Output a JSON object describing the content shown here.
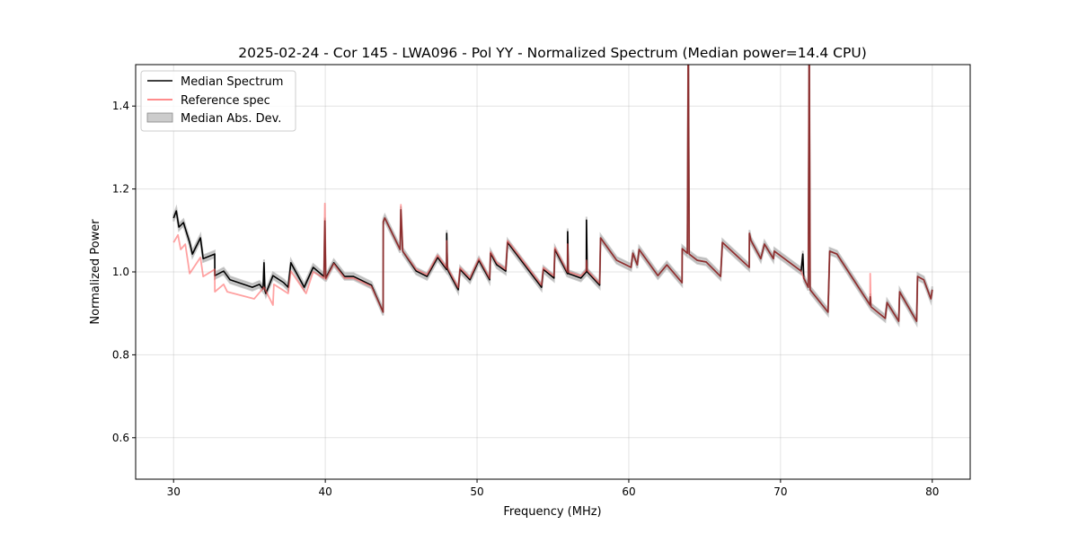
{
  "chart_data": {
    "type": "line",
    "title": "2025-02-24 - Cor 145 - LWA096 - Pol YY - Normalized Spectrum (Median power=14.4 CPU)",
    "xlabel": "Frequency (MHz)",
    "ylabel": "Normalized Power",
    "xlim": [
      27.5,
      82.5
    ],
    "ylim": [
      0.5,
      1.5
    ],
    "xticks": [
      30,
      40,
      50,
      60,
      70,
      80
    ],
    "xtick_labels": [
      "30",
      "40",
      "50",
      "60",
      "70",
      "80"
    ],
    "yticks": [
      0.6,
      0.8,
      1.0,
      1.2,
      1.4
    ],
    "ytick_labels": [
      "0.6",
      "0.8",
      "1.0",
      "1.2",
      "1.4"
    ],
    "grid": true,
    "legend_position": "top-left",
    "legend": [
      "Median Spectrum",
      "Reference spec",
      "Median Abs. Dev."
    ],
    "colors": {
      "median": "#000000",
      "reference": "#ff5555",
      "mad": "#aaaaaa"
    },
    "mad_halfwidth": 0.008,
    "series": [
      {
        "name": "Median Spectrum",
        "x": [
          30.0,
          30.18,
          30.35,
          30.65,
          31.06,
          31.24,
          31.77,
          31.95,
          32.71,
          32.72,
          33.3,
          33.72,
          35.19,
          35.66,
          35.9,
          35.96,
          36.02,
          36.08,
          36.55,
          37.26,
          37.55,
          37.73,
          38.61,
          39.2,
          39.91,
          39.97,
          40.03,
          40.56,
          41.27,
          41.86,
          43.04,
          43.81,
          43.82,
          43.92,
          44.93,
          44.98,
          45.1,
          45.99,
          46.7,
          47.4,
          47.99,
          48.0,
          48.05,
          48.76,
          48.88,
          49.53,
          50.12,
          50.83,
          50.89,
          51.3,
          51.89,
          52.01,
          54.25,
          54.37,
          55.07,
          55.13,
          55.96,
          55.97,
          56.02,
          56.84,
          57.2,
          57.21,
          57.26,
          58.08,
          58.14,
          59.2,
          60.15,
          60.27,
          60.56,
          60.68,
          61.92,
          62.51,
          63.51,
          63.52,
          63.86,
          63.92,
          63.98,
          64.51,
          65.1,
          66.05,
          66.17,
          67.94,
          67.95,
          68.05,
          68.7,
          68.94,
          69.53,
          69.59,
          71.36,
          71.47,
          71.53,
          71.83,
          71.89,
          71.95,
          73.13,
          73.24,
          73.72,
          75.9,
          75.91,
          75.96,
          76.9,
          77.02,
          77.79,
          77.85,
          78.97,
          79.03,
          79.44,
          79.91,
          80.0
        ],
        "y": [
          1.13,
          1.147,
          1.108,
          1.119,
          1.071,
          1.043,
          1.082,
          1.032,
          1.043,
          0.991,
          1.002,
          0.981,
          0.963,
          0.97,
          0.959,
          1.022,
          0.955,
          0.948,
          0.991,
          0.974,
          0.963,
          1.022,
          0.963,
          1.011,
          0.989,
          1.123,
          0.985,
          1.022,
          0.989,
          0.989,
          0.968,
          0.903,
          1.121,
          1.13,
          1.054,
          1.15,
          1.05,
          1.002,
          0.989,
          1.035,
          1.006,
          1.093,
          1.006,
          0.957,
          1.006,
          0.981,
          1.028,
          0.981,
          1.045,
          1.017,
          1.002,
          1.071,
          0.963,
          1.006,
          0.985,
          1.054,
          0.996,
          1.097,
          0.996,
          0.985,
          1.0,
          1.125,
          1.0,
          0.968,
          1.082,
          1.028,
          1.011,
          1.045,
          1.017,
          1.054,
          0.991,
          1.017,
          0.974,
          1.056,
          1.045,
          1.6,
          1.043,
          1.028,
          1.024,
          0.989,
          1.071,
          1.011,
          1.093,
          1.076,
          1.032,
          1.067,
          1.032,
          1.05,
          1.002,
          1.043,
          0.985,
          0.963,
          1.6,
          0.957,
          0.903,
          1.05,
          1.043,
          0.92,
          0.94,
          0.916,
          0.888,
          0.926,
          0.881,
          0.952,
          0.881,
          0.989,
          0.981,
          0.935,
          0.957
        ]
      },
      {
        "name": "Reference spec",
        "x": [
          30.0,
          30.29,
          30.47,
          30.77,
          31.06,
          31.77,
          31.95,
          32.71,
          32.72,
          33.3,
          33.54,
          35.31,
          35.96,
          36.55,
          36.61,
          37.55,
          37.73,
          38.73,
          39.2,
          39.91,
          39.97,
          40.03,
          40.56,
          41.27,
          41.86,
          43.04,
          43.81,
          43.82,
          43.92,
          44.93,
          44.98,
          45.1,
          45.99,
          46.7,
          47.4,
          47.99,
          48.0,
          48.05,
          48.76,
          48.88,
          49.53,
          50.12,
          50.83,
          50.89,
          51.3,
          51.89,
          52.01,
          54.25,
          54.37,
          55.07,
          55.13,
          55.96,
          55.97,
          56.02,
          56.84,
          57.2,
          57.21,
          57.26,
          58.08,
          58.14,
          59.2,
          60.15,
          60.27,
          60.56,
          60.68,
          61.92,
          62.51,
          63.51,
          63.52,
          63.86,
          63.92,
          63.98,
          64.51,
          65.1,
          66.05,
          66.17,
          67.94,
          67.95,
          68.05,
          68.7,
          68.94,
          69.53,
          69.59,
          71.36,
          71.53,
          71.83,
          71.89,
          71.95,
          73.13,
          73.24,
          73.72,
          75.9,
          75.91,
          75.96,
          76.9,
          77.02,
          77.79,
          77.85,
          78.97,
          79.03,
          79.44,
          79.91,
          80.0
        ],
        "y": [
          1.071,
          1.089,
          1.054,
          1.067,
          0.996,
          1.035,
          0.989,
          1.006,
          0.952,
          0.97,
          0.952,
          0.935,
          0.963,
          0.92,
          0.97,
          0.948,
          1.002,
          0.948,
          1.0,
          0.985,
          1.165,
          0.982,
          1.02,
          0.985,
          0.985,
          0.965,
          0.903,
          1.121,
          1.13,
          1.054,
          1.162,
          1.05,
          1.006,
          0.993,
          1.04,
          1.01,
          1.075,
          1.01,
          0.962,
          1.01,
          0.985,
          1.032,
          0.985,
          1.048,
          1.022,
          1.006,
          1.075,
          0.968,
          1.01,
          0.99,
          1.058,
          1.0,
          1.067,
          1.0,
          0.99,
          1.004,
          1.028,
          1.004,
          0.972,
          1.082,
          1.028,
          1.011,
          1.045,
          1.017,
          1.054,
          0.991,
          1.017,
          0.974,
          1.056,
          1.045,
          1.6,
          1.043,
          1.028,
          1.024,
          0.989,
          1.071,
          1.011,
          1.093,
          1.076,
          1.032,
          1.067,
          1.032,
          1.05,
          1.002,
          0.985,
          0.963,
          1.6,
          0.957,
          0.903,
          1.05,
          1.043,
          0.92,
          0.996,
          0.916,
          0.888,
          0.926,
          0.881,
          0.952,
          0.881,
          0.989,
          0.981,
          0.935,
          0.957
        ]
      }
    ]
  }
}
